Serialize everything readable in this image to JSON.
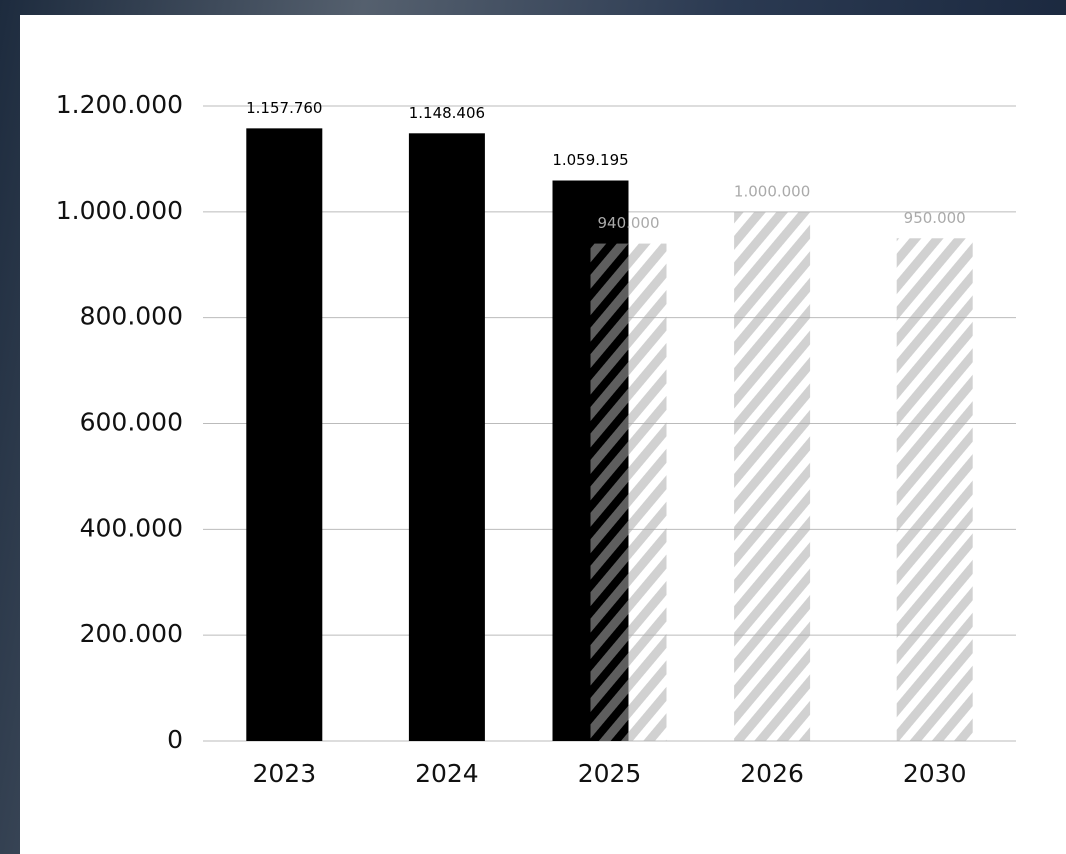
{
  "chart_data": {
    "type": "bar",
    "categories": [
      "2023",
      "2024",
      "2025",
      "2026",
      "2030"
    ],
    "series": [
      {
        "color": "#000000",
        "hatched": false,
        "values": [
          1157760,
          1148406,
          1059195,
          null,
          null
        ],
        "value_labels": [
          "1.157.760",
          "1.148.406",
          "1.059.195",
          null,
          null
        ]
      },
      {
        "color": "#aaaaaa",
        "hatched": true,
        "values": [
          null,
          null,
          940000,
          1000000,
          950000
        ],
        "value_labels": [
          null,
          null,
          "940.000",
          "1.000.000",
          "950.000"
        ]
      }
    ],
    "ylim": [
      0,
      1200000
    ],
    "yticks": [
      {
        "value": 0,
        "label": "0"
      },
      {
        "value": 200000,
        "label": "200.000"
      },
      {
        "value": 400000,
        "label": "400.000"
      },
      {
        "value": 600000,
        "label": "600.000"
      },
      {
        "value": 800000,
        "label": "800.000"
      },
      {
        "value": 1000000,
        "label": "1.000.000"
      },
      {
        "value": 1200000,
        "label": "1.200.000"
      }
    ],
    "grid": true
  }
}
